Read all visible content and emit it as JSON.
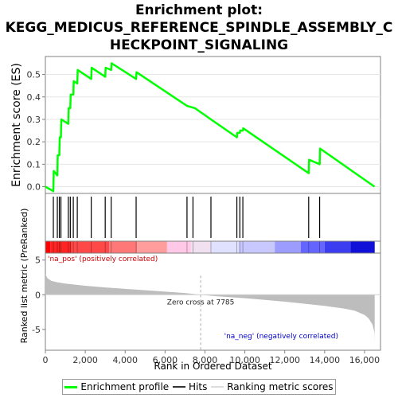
{
  "title_lines": [
    "Enrichment plot:",
    "KEGG_MEDICUS_REFERENCE_SPINDLE_ASSEMBLY_C",
    "HECKPOINT_SIGNALING"
  ],
  "colors": {
    "es_line": "#00ff00",
    "hits": "#000000",
    "metric_fill": "#bdbdbd",
    "zero_cross_line": "#aaaaaa",
    "pos_label": "#cc0000",
    "neg_label": "#0000cc",
    "axis": "#808080"
  },
  "chart_data": {
    "type": "line",
    "es_panel": {
      "ylabel": "Enrichment score (ES)",
      "ylim": [
        -0.03,
        0.58
      ],
      "yticks": [
        0.0,
        0.1,
        0.2,
        0.3,
        0.4,
        0.5
      ],
      "ytick_labels": [
        "0.0",
        "0.1",
        "0.2",
        "0.3",
        "0.4",
        "0.5"
      ],
      "series": [
        {
          "name": "Enrichment profile",
          "x": [
            0,
            400,
            420,
            600,
            620,
            700,
            720,
            780,
            800,
            1150,
            1170,
            1250,
            1270,
            1400,
            1420,
            1600,
            1620,
            2300,
            2320,
            3000,
            3020,
            3300,
            3320,
            4550,
            4570,
            7100,
            7500,
            8300,
            9600,
            9620,
            9750,
            9770,
            9900,
            9920,
            13200,
            13220,
            13750,
            13770,
            16500
          ],
          "y": [
            0.0,
            -0.02,
            0.07,
            0.05,
            0.14,
            0.14,
            0.22,
            0.22,
            0.3,
            0.28,
            0.35,
            0.35,
            0.41,
            0.41,
            0.47,
            0.46,
            0.52,
            0.48,
            0.53,
            0.49,
            0.53,
            0.52,
            0.55,
            0.48,
            0.51,
            0.36,
            0.35,
            0.3,
            0.22,
            0.24,
            0.24,
            0.25,
            0.25,
            0.26,
            0.06,
            0.12,
            0.1,
            0.17,
            0.0
          ]
        }
      ]
    },
    "hits": [
      400,
      600,
      700,
      780,
      1150,
      1250,
      1400,
      1600,
      2300,
      3000,
      3300,
      4550,
      7100,
      7400,
      8300,
      9600,
      9750,
      9900,
      13200,
      13750
    ],
    "metric_panel": {
      "ylabel": "Ranked list metric (PreRanked)",
      "xlabel": "Rank in Ordered Dataset",
      "xlim": [
        0,
        16800
      ],
      "xticks": [
        0,
        2000,
        4000,
        6000,
        8000,
        10000,
        12000,
        14000,
        16000
      ],
      "xtick_labels": [
        "0",
        "2,000",
        "4,000",
        "6,000",
        "8,000",
        "10,000",
        "12,000",
        "14,000",
        "16,000"
      ],
      "ylim": [
        -8,
        6
      ],
      "yticks": [
        -5,
        0,
        5
      ],
      "ytick_labels": [
        "-5",
        "0",
        "5"
      ],
      "metric_curve": {
        "x": [
          0,
          100,
          300,
          600,
          1000,
          2000,
          3000,
          4000,
          5000,
          6000,
          7000,
          7785,
          8500,
          10000,
          11000,
          12000,
          13000,
          14000,
          15000,
          15500,
          16000,
          16200,
          16400,
          16500,
          16510
        ],
        "y": [
          3.0,
          2.4,
          2.0,
          1.8,
          1.6,
          1.3,
          1.05,
          0.85,
          0.65,
          0.45,
          0.25,
          0.0,
          -0.2,
          -0.5,
          -0.75,
          -1.0,
          -1.3,
          -1.6,
          -2.0,
          -2.3,
          -2.9,
          -3.4,
          -4.3,
          -5.5,
          -7.2
        ]
      },
      "zero_cross_label": "Zero cross at 7785",
      "zero_cross_rank": 7785,
      "pos_label": "'na_pos' (positively correlated)",
      "neg_label": "'na_neg' (negatively correlated)"
    },
    "legend": [
      "Enrichment profile",
      "Hits",
      "Ranking metric scores"
    ]
  }
}
